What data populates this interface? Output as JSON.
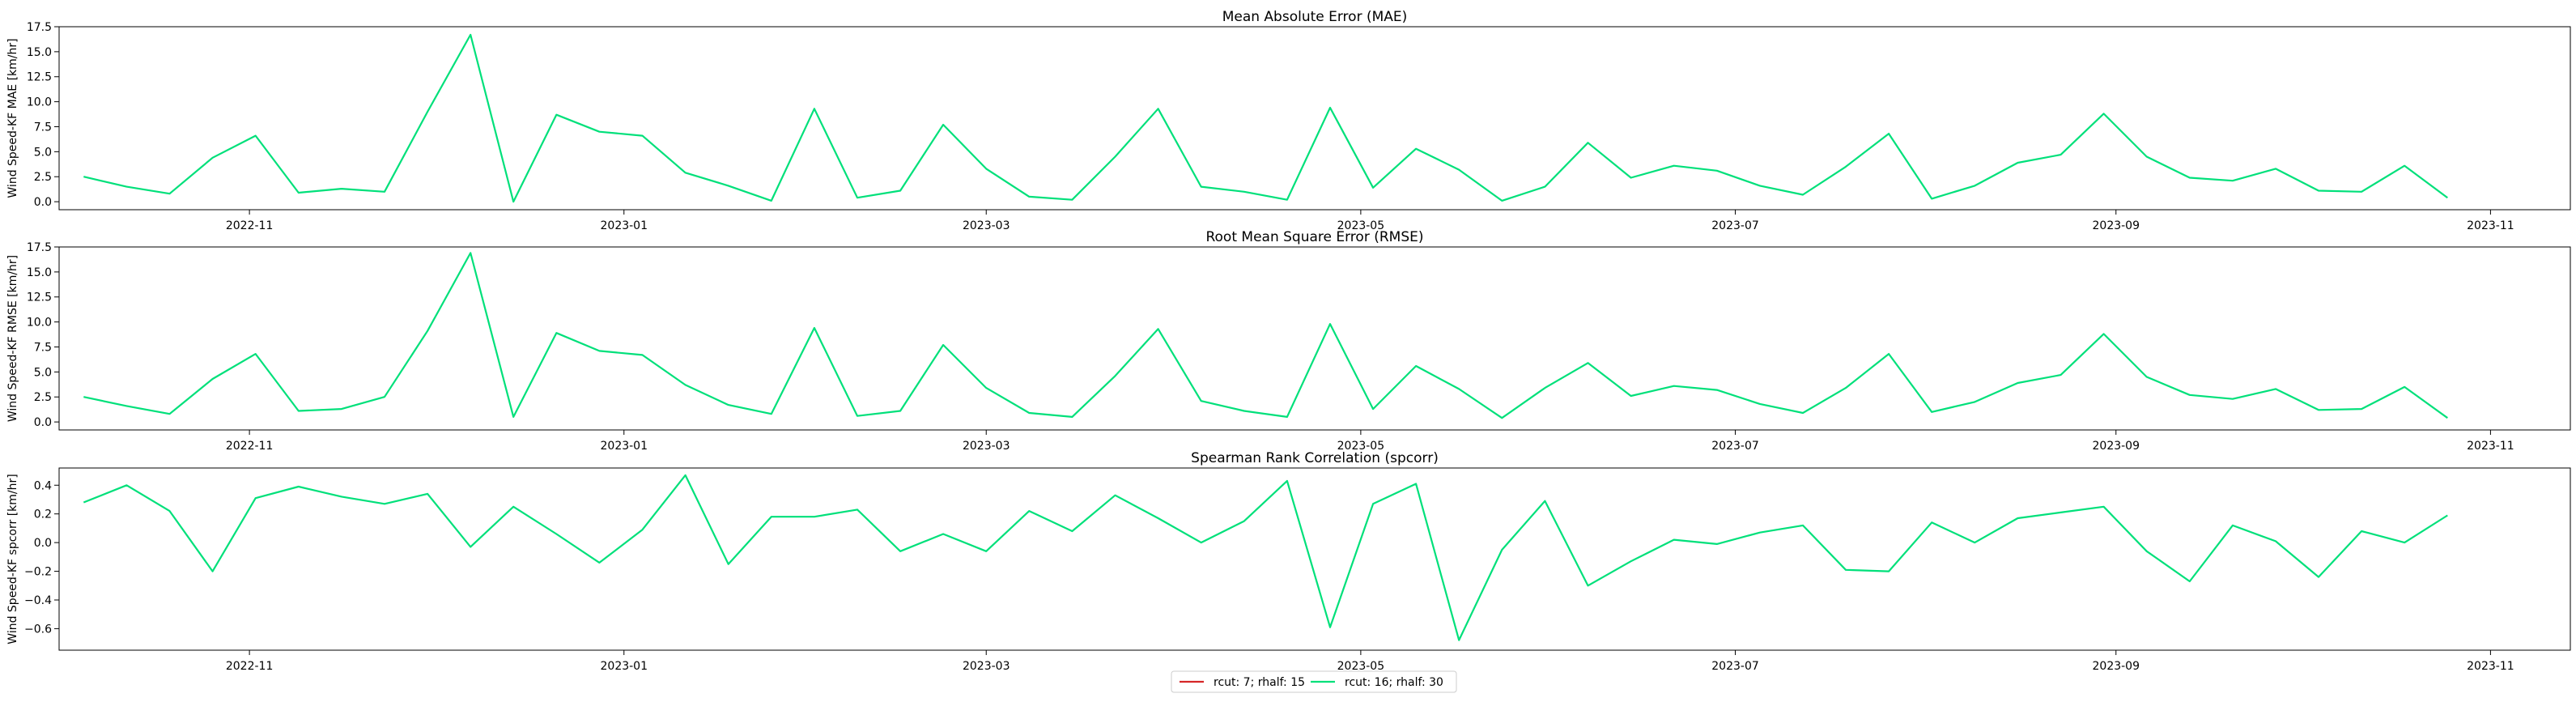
{
  "chart_data": [
    {
      "type": "line",
      "title": "Mean Absolute Error (MAE)",
      "ylabel": "Wind Speed-KF MAE [km/hr]",
      "xlabel": "",
      "ylim": [
        -0.8,
        17.5
      ],
      "yticks": [
        0.0,
        2.5,
        5.0,
        7.5,
        10.0,
        12.5,
        15.0,
        17.5
      ],
      "ytick_labels": [
        "0.0",
        "2.5",
        "5.0",
        "7.5",
        "10.0",
        "12.5",
        "15.0",
        "17.5"
      ],
      "series": [
        {
          "name": "rcut: 16; rhalf: 30",
          "color": "#00e07a",
          "values": [
            2.5,
            1.5,
            0.8,
            4.4,
            6.6,
            0.9,
            1.3,
            1.0,
            9.0,
            16.7,
            0.0,
            8.7,
            7.0,
            6.6,
            2.9,
            1.6,
            0.1,
            9.3,
            0.4,
            1.1,
            7.7,
            3.3,
            0.5,
            0.2,
            4.5,
            9.3,
            1.5,
            1.0,
            0.2,
            9.4,
            1.4,
            5.3,
            3.2,
            0.1,
            1.5,
            5.9,
            2.4,
            3.6,
            3.1,
            1.6,
            0.7,
            3.5,
            6.8,
            0.3,
            1.6,
            3.9,
            4.7,
            8.8,
            4.5,
            2.4,
            2.1,
            3.3,
            1.1,
            1.0,
            3.6,
            0.4
          ]
        }
      ]
    },
    {
      "type": "line",
      "title": "Root Mean Square Error (RMSE)",
      "ylabel": "Wind Speed-KF RMSE [km/hr]",
      "xlabel": "",
      "ylim": [
        -0.8,
        17.5
      ],
      "yticks": [
        0.0,
        2.5,
        5.0,
        7.5,
        10.0,
        12.5,
        15.0,
        17.5
      ],
      "ytick_labels": [
        "0.0",
        "2.5",
        "5.0",
        "7.5",
        "10.0",
        "12.5",
        "15.0",
        "17.5"
      ],
      "series": [
        {
          "name": "rcut: 16; rhalf: 30",
          "color": "#00e07a",
          "values": [
            2.5,
            1.6,
            0.8,
            4.3,
            6.8,
            1.1,
            1.3,
            2.5,
            9.1,
            16.9,
            0.5,
            8.9,
            7.1,
            6.7,
            3.7,
            1.7,
            0.8,
            9.4,
            0.6,
            1.1,
            7.7,
            3.4,
            0.9,
            0.5,
            4.6,
            9.3,
            2.1,
            1.1,
            0.5,
            9.8,
            1.3,
            5.6,
            3.3,
            0.4,
            3.4,
            5.9,
            2.6,
            3.6,
            3.2,
            1.8,
            0.9,
            3.4,
            6.8,
            1.0,
            2.0,
            3.9,
            4.7,
            8.8,
            4.5,
            2.7,
            2.3,
            3.3,
            1.2,
            1.3,
            3.5,
            0.4
          ]
        }
      ]
    },
    {
      "type": "line",
      "title": "Spearman Rank Correlation (spcorr)",
      "ylabel": "Wind Speed-KF spcorr [km/hr]",
      "xlabel": "",
      "ylim": [
        -0.75,
        0.52
      ],
      "yticks": [
        -0.6,
        -0.4,
        -0.2,
        0.0,
        0.2,
        0.4
      ],
      "ytick_labels": [
        "−0.6",
        "−0.4",
        "−0.2",
        "0.0",
        "0.2",
        "0.4"
      ],
      "series": [
        {
          "name": "rcut: 16; rhalf: 30",
          "color": "#00e07a",
          "values": [
            0.28,
            0.4,
            0.22,
            -0.2,
            0.31,
            0.39,
            0.32,
            0.27,
            0.34,
            -0.03,
            0.25,
            0.06,
            -0.14,
            0.09,
            0.47,
            -0.15,
            0.18,
            0.18,
            0.23,
            -0.06,
            0.06,
            -0.06,
            0.22,
            0.08,
            0.33,
            0.17,
            0.0,
            0.15,
            0.43,
            -0.59,
            0.27,
            0.41,
            -0.68,
            -0.05,
            0.29,
            -0.3,
            -0.13,
            0.02,
            -0.01,
            0.07,
            0.12,
            -0.19,
            -0.2,
            0.14,
            0.0,
            0.17,
            0.21,
            0.25,
            -0.06,
            -0.27,
            0.12,
            0.01,
            -0.24,
            0.08,
            0.0,
            0.19
          ]
        }
      ]
    }
  ],
  "xaxis": {
    "start": "2022-10-01",
    "end": "2023-11-14",
    "first_point": "2022-10-05",
    "step_days": 7,
    "tick_labels": [
      "2022-11",
      "2023-01",
      "2023-03",
      "2023-05",
      "2023-07",
      "2023-09",
      "2023-11"
    ],
    "tick_dates": [
      "2022-11-01",
      "2023-01-01",
      "2023-03-01",
      "2023-05-01",
      "2023-07-01",
      "2023-09-01",
      "2023-11-01"
    ]
  },
  "legend": {
    "placement": "bottom-center",
    "entries": [
      {
        "label": "rcut: 7; rhalf: 15",
        "color": "#d62728"
      },
      {
        "label": "rcut: 16; rhalf: 30",
        "color": "#00e07a"
      }
    ]
  }
}
